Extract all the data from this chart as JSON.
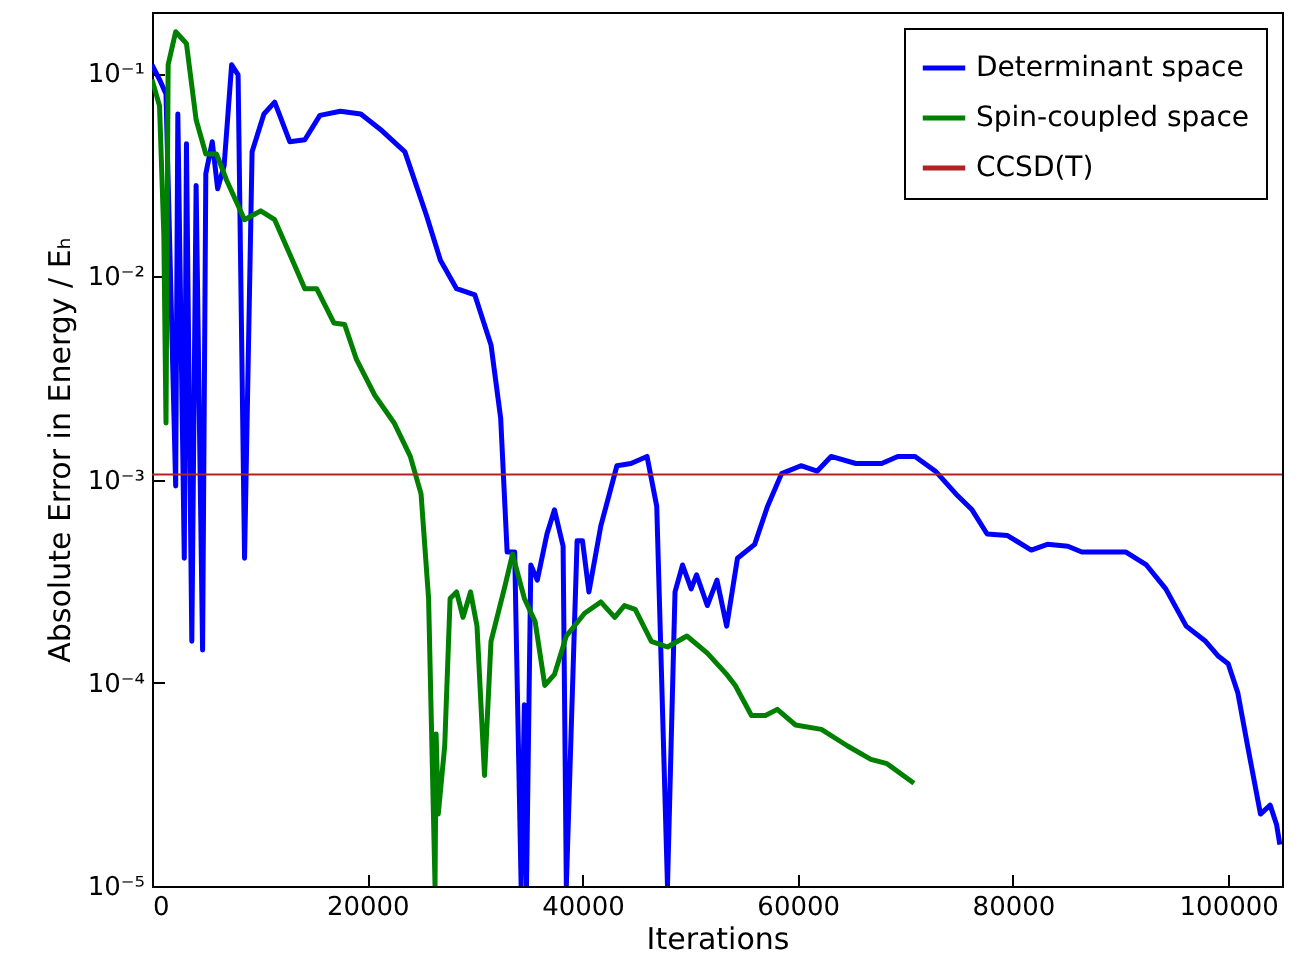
{
  "chart_data": {
    "type": "line",
    "xlabel": "Iterations",
    "ylabel": "Absolute Error in Energy / Eₕ",
    "xlim": [
      0,
      105000
    ],
    "xticks": [
      0,
      20000,
      40000,
      60000,
      80000,
      100000
    ],
    "ylim": [
      1e-05,
      0.2
    ],
    "log": "y",
    "yticks": [
      {
        "value": 1e-05,
        "label": "10⁻⁵"
      },
      {
        "value": 0.0001,
        "label": "10⁻⁴"
      },
      {
        "value": 0.001,
        "label": "10⁻³"
      },
      {
        "value": 0.01,
        "label": "10⁻²"
      },
      {
        "value": 0.1,
        "label": "10⁻¹"
      }
    ],
    "grid": false,
    "legend": "top right",
    "series": [
      {
        "name": "Determinant space",
        "color": "#0000ff",
        "x": [
          0,
          700,
          1300,
          2200,
          2400,
          3000,
          3200,
          3700,
          4100,
          4700,
          5000,
          5600,
          6100,
          6700,
          7400,
          8000,
          8600,
          9300,
          10400,
          11400,
          12800,
          14200,
          15600,
          17500,
          19400,
          21200,
          23500,
          25500,
          26800,
          28300,
          30000,
          31500,
          32400,
          33000,
          33700,
          34300,
          34600,
          34800,
          35200,
          35800,
          36700,
          37400,
          38200,
          38500,
          39500,
          40000,
          40600,
          41700,
          43200,
          44500,
          46000,
          46900,
          47900,
          48600,
          49300,
          50100,
          50600,
          51600,
          52500,
          53400,
          54400,
          56000,
          57200,
          58500,
          60300,
          61800,
          63100,
          65400,
          67800,
          69300,
          70900,
          72800,
          74700,
          76200,
          77600,
          79500,
          81700,
          83200,
          85100,
          86400,
          88600,
          90500,
          92400,
          94200,
          96100,
          97900,
          99100,
          100000,
          100900,
          101800,
          103000,
          103900,
          104500,
          104800
        ],
        "values": [
          0.11,
          0.093,
          0.079,
          0.00093,
          0.063,
          0.00041,
          0.045,
          0.00016,
          0.028,
          0.000145,
          0.032,
          0.046,
          0.027,
          0.035,
          0.11,
          0.098,
          0.00041,
          0.041,
          0.063,
          0.072,
          0.046,
          0.047,
          0.062,
          0.065,
          0.063,
          0.053,
          0.041,
          0.02,
          0.012,
          0.0087,
          0.0081,
          0.0046,
          0.002,
          0.00044,
          0.00044,
          1e-05,
          7.8e-05,
          1e-05,
          0.00038,
          0.00032,
          0.00054,
          0.00071,
          0.00047,
          1e-05,
          0.0005,
          0.0005,
          0.00028,
          0.00059,
          0.00117,
          0.0012,
          0.0013,
          0.00074,
          1e-05,
          0.00028,
          0.00038,
          0.00029,
          0.00034,
          0.00024,
          0.00032,
          0.00019,
          0.00041,
          0.00048,
          0.00074,
          0.00107,
          0.00117,
          0.0011,
          0.0013,
          0.0012,
          0.0012,
          0.0013,
          0.0013,
          0.0011,
          0.00085,
          0.00071,
          0.00054,
          0.00053,
          0.00045,
          0.00048,
          0.00047,
          0.00044,
          0.00044,
          0.00044,
          0.00038,
          0.00029,
          0.00019,
          0.00016,
          0.000135,
          0.000124,
          8.9e-05,
          4.9e-05,
          2.26e-05,
          2.5e-05,
          2e-05,
          1.6e-05
        ]
      },
      {
        "name": "Spin-coupled space",
        "color": "#008000",
        "x": [
          0,
          700,
          1100,
          1300,
          1500,
          2200,
          3200,
          4100,
          5000,
          6000,
          6900,
          8600,
          10100,
          11400,
          12500,
          14200,
          15300,
          16900,
          17900,
          19000,
          20700,
          22500,
          24000,
          25000,
          25700,
          26300,
          26400,
          26600,
          27200,
          27700,
          28300,
          28900,
          29600,
          30200,
          30900,
          31500,
          32800,
          33500,
          34600,
          35600,
          36500,
          37400,
          38500,
          40200,
          41700,
          43000,
          43900,
          44900,
          46400,
          47900,
          49700,
          51600,
          53400,
          54200,
          55700,
          57000,
          58100,
          59800,
          62200,
          64600,
          66800,
          68300,
          70800
        ],
        "values": [
          0.093,
          0.069,
          0.016,
          0.0019,
          0.11,
          0.16,
          0.14,
          0.059,
          0.04,
          0.04,
          0.03,
          0.019,
          0.021,
          0.019,
          0.014,
          0.0087,
          0.0087,
          0.0059,
          0.0058,
          0.0039,
          0.0026,
          0.0019,
          0.0013,
          0.00085,
          0.00026,
          1e-05,
          5.6e-05,
          2.26e-05,
          4.9e-05,
          0.00026,
          0.00028,
          0.00021,
          0.00028,
          0.00019,
          3.5e-05,
          0.00016,
          0.0003,
          0.00043,
          0.00026,
          0.0002,
          9.7e-05,
          0.00011,
          0.00017,
          0.00022,
          0.00025,
          0.00021,
          0.00024,
          0.00023,
          0.00016,
          0.00015,
          0.00017,
          0.00014,
          0.00011,
          9.7e-05,
          6.9e-05,
          6.9e-05,
          7.4e-05,
          6.2e-05,
          5.9e-05,
          4.9e-05,
          4.2e-05,
          4e-05,
          3.2e-05
        ]
      }
    ],
    "ref_lines": [
      {
        "axis": "y",
        "value": 0.00106,
        "label": "CCSD(T)",
        "color": "#b22222"
      }
    ]
  }
}
